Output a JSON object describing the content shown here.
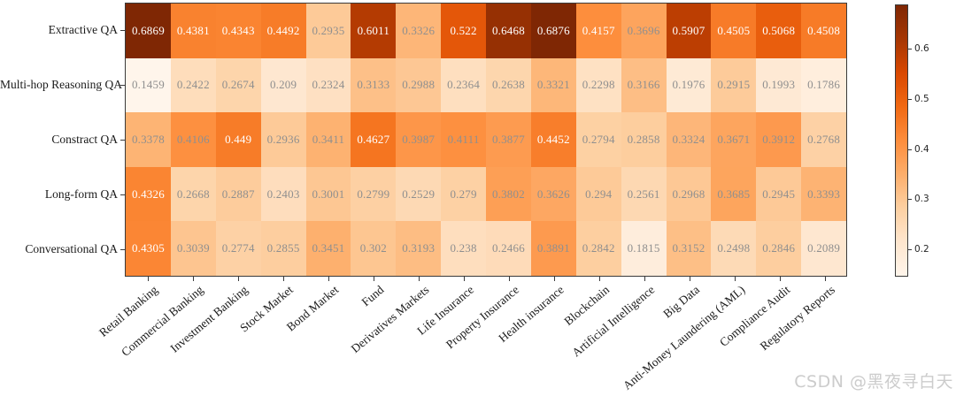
{
  "watermark": "CSDN @黑夜寻白天",
  "colors": {
    "annotation_light": "#ffffff",
    "annotation_dark": "#8f8f8f",
    "axis_text": "#1a1a1a",
    "axis_line": "#3a3a3a",
    "watermark": "#cccccc"
  },
  "chart_data": {
    "type": "heatmap",
    "colormap": "Oranges",
    "colormap_colors": [
      "#fff5eb",
      "#fee6ce",
      "#fdd0a2",
      "#fdae6b",
      "#fd8d3c",
      "#f16913",
      "#d94801",
      "#a63603",
      "#7f2704"
    ],
    "vmin": 0.1459,
    "vmax": 0.6876,
    "white_text_norm_threshold": 0.494,
    "rows": [
      "Extractive QA",
      "Multi-hop Reasoning QA",
      "Constract QA",
      "Long-form QA",
      "Conversational QA"
    ],
    "columns": [
      "Retail Banking",
      "Commercial Banking",
      "Investment Banking",
      "Stock Market",
      "Bond Market",
      "Fund",
      "Derivatives Markets",
      "Life Insurance",
      "Property Insurance",
      "Health insurance",
      "Blockchain",
      "Artificial Intelligence",
      "Big Data",
      "Anti-Money Laundering (AML)",
      "Compliance Audit",
      "Regulatory Reports"
    ],
    "values": [
      [
        0.6869,
        0.4381,
        0.4343,
        0.4492,
        0.2935,
        0.6011,
        0.3326,
        0.522,
        0.6468,
        0.6876,
        0.4157,
        0.3696,
        0.5907,
        0.4505,
        0.5068,
        0.4508
      ],
      [
        0.1459,
        0.2422,
        0.2674,
        0.209,
        0.2324,
        0.3133,
        0.2988,
        0.2364,
        0.2638,
        0.3321,
        0.2298,
        0.3166,
        0.1976,
        0.2915,
        0.1993,
        0.1786
      ],
      [
        0.3378,
        0.4106,
        0.449,
        0.2936,
        0.3411,
        0.4627,
        0.3987,
        0.4111,
        0.3877,
        0.4452,
        0.2794,
        0.2858,
        0.3324,
        0.3671,
        0.3912,
        0.2768
      ],
      [
        0.4326,
        0.2668,
        0.2887,
        0.2403,
        0.3001,
        0.2799,
        0.2529,
        0.279,
        0.3802,
        0.3626,
        0.294,
        0.2561,
        0.2968,
        0.3685,
        0.2945,
        0.3393
      ],
      [
        0.4305,
        0.3039,
        0.2774,
        0.2855,
        0.3451,
        0.302,
        0.3193,
        0.238,
        0.2466,
        0.3891,
        0.2842,
        0.1815,
        0.3152,
        0.2498,
        0.2846,
        0.2089
      ]
    ],
    "colorbar_ticks": [
      0.2,
      0.3,
      0.4,
      0.5,
      0.6
    ],
    "legend_position": "right",
    "grid": false,
    "title": "",
    "xlabel": "",
    "ylabel": ""
  }
}
